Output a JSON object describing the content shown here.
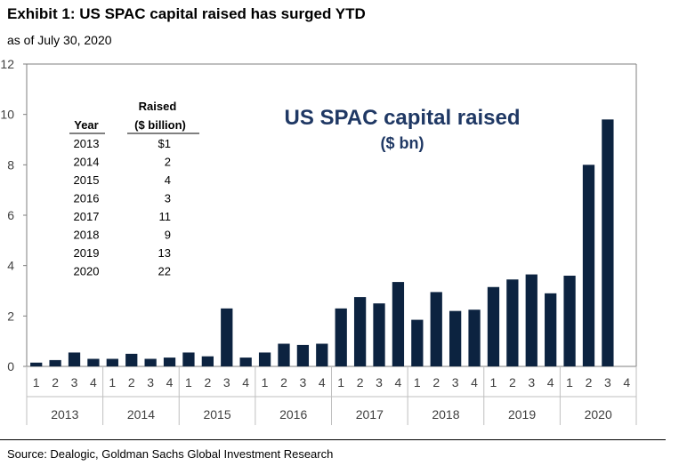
{
  "exhibit": {
    "title": "Exhibit 1: US SPAC capital raised has surged YTD",
    "subtitle": "as of July 30, 2020",
    "source": "Source: Dealogic, Goldman Sachs Global Investment Research"
  },
  "chart_data": {
    "type": "bar",
    "title": "US SPAC capital raised",
    "subtitle": "($ bn)",
    "xlabel": "",
    "ylabel": "",
    "ylim": [
      0,
      12
    ],
    "yticks": [
      0,
      2,
      4,
      6,
      8,
      10,
      12
    ],
    "grid": false,
    "legend": "none",
    "bar_color": "#0c2340",
    "years": [
      "2013",
      "2014",
      "2015",
      "2016",
      "2017",
      "2018",
      "2019",
      "2020"
    ],
    "quarters": [
      "1",
      "2",
      "3",
      "4"
    ],
    "categories": [
      "2013 Q1",
      "2013 Q2",
      "2013 Q3",
      "2013 Q4",
      "2014 Q1",
      "2014 Q2",
      "2014 Q3",
      "2014 Q4",
      "2015 Q1",
      "2015 Q2",
      "2015 Q3",
      "2015 Q4",
      "2016 Q1",
      "2016 Q2",
      "2016 Q3",
      "2016 Q4",
      "2017 Q1",
      "2017 Q2",
      "2017 Q3",
      "2017 Q4",
      "2018 Q1",
      "2018 Q2",
      "2018 Q3",
      "2018 Q4",
      "2019 Q1",
      "2019 Q2",
      "2019 Q3",
      "2019 Q4",
      "2020 Q1",
      "2020 Q2",
      "2020 Q3",
      "2020 Q4"
    ],
    "values": [
      0.15,
      0.25,
      0.55,
      0.3,
      0.3,
      0.5,
      0.3,
      0.35,
      0.55,
      0.4,
      2.3,
      0.35,
      0.55,
      0.9,
      0.85,
      0.9,
      2.3,
      2.75,
      2.5,
      3.35,
      1.85,
      2.95,
      2.2,
      2.25,
      3.15,
      3.45,
      3.65,
      2.9,
      3.6,
      8.0,
      9.8,
      null
    ],
    "annual_table": {
      "header_year": "Year",
      "header_raised_line1": "Raised",
      "header_raised_line2": "($ billion)",
      "rows": [
        {
          "year": "2013",
          "raised": "$1"
        },
        {
          "year": "2014",
          "raised": "2"
        },
        {
          "year": "2015",
          "raised": "4"
        },
        {
          "year": "2016",
          "raised": "3"
        },
        {
          "year": "2017",
          "raised": "11"
        },
        {
          "year": "2018",
          "raised": "9"
        },
        {
          "year": "2019",
          "raised": "13"
        },
        {
          "year": "2020",
          "raised": "22"
        }
      ]
    }
  }
}
